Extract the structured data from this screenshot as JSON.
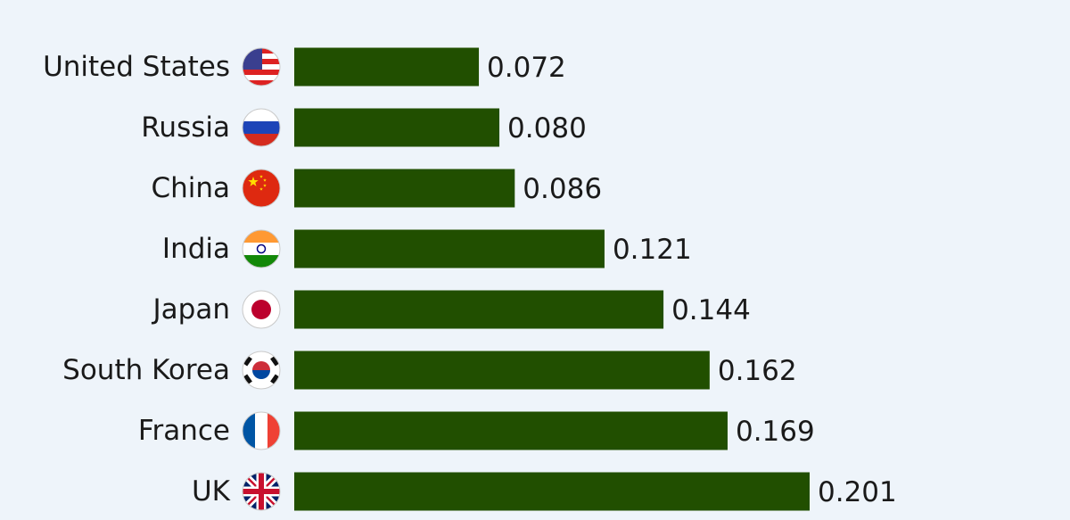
{
  "chart_data": {
    "type": "bar",
    "orientation": "horizontal",
    "categories": [
      "United States",
      "Russia",
      "China",
      "India",
      "Japan",
      "South Korea",
      "France",
      "UK"
    ],
    "values": [
      0.072,
      0.08,
      0.086,
      0.121,
      0.144,
      0.162,
      0.169,
      0.201
    ],
    "value_labels": [
      "0.072",
      "0.080",
      "0.086",
      "0.121",
      "0.144",
      "0.162",
      "0.169",
      "0.201"
    ],
    "color": "#214f00"
  }
}
